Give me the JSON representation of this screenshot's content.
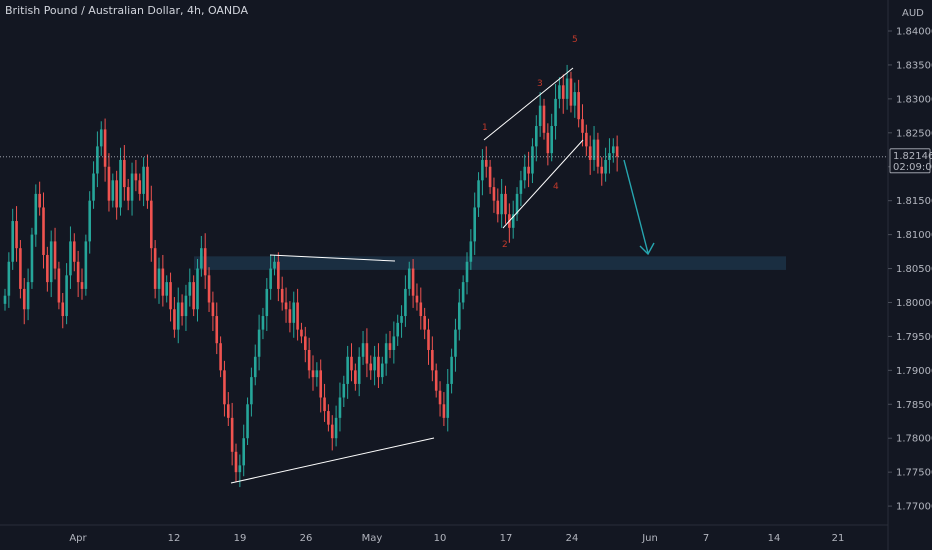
{
  "chart_title": "British Pound / Australian Dollar, 4h, OANDA",
  "chart_data": {
    "type": "candlestick",
    "title": "British Pound / Australian Dollar, 4h, OANDA",
    "currency": "AUD",
    "ylim": [
      1.7675,
      1.8425
    ],
    "y_ticks": [
      "1.84000",
      "1.83500",
      "1.83000",
      "1.82500",
      "1.82000",
      "1.81500",
      "1.81000",
      "1.80500",
      "1.80000",
      "1.79500",
      "1.79000",
      "1.78500",
      "1.78000",
      "1.77500",
      "1.77000"
    ],
    "x_ticks": [
      "Apr",
      "12",
      "19",
      "26",
      "May",
      "10",
      "17",
      "24",
      "Jun",
      "7",
      "14",
      "21"
    ],
    "last_price": "1.82146",
    "countdown": "02:09:04",
    "support_zone": [
      1.8048,
      1.8068
    ],
    "wave_labels": [
      "1",
      "2",
      "3",
      "4",
      "5"
    ],
    "close_series": [
      1.801,
      1.806,
      1.812,
      1.808,
      1.802,
      1.799,
      1.803,
      1.81,
      1.816,
      1.814,
      1.807,
      1.803,
      1.809,
      1.805,
      1.8,
      1.798,
      1.804,
      1.809,
      1.806,
      1.803,
      1.802,
      1.809,
      1.815,
      1.819,
      1.823,
      1.8255,
      1.82,
      1.815,
      1.818,
      1.814,
      1.821,
      1.817,
      1.815,
      1.819,
      1.818,
      1.816,
      1.82,
      1.815,
      1.808,
      1.802,
      1.805,
      1.801,
      1.803,
      1.799,
      1.796,
      1.8,
      1.798,
      1.801,
      1.803,
      1.799,
      1.805,
      1.808,
      1.804,
      1.8,
      1.798,
      1.794,
      1.79,
      1.785,
      1.783,
      1.778,
      1.775,
      1.776,
      1.78,
      1.785,
      1.789,
      1.792,
      1.796,
      1.798,
      1.802,
      1.805,
      1.806,
      1.802,
      1.8,
      1.799,
      1.797,
      1.8,
      1.796,
      1.795,
      1.793,
      1.79,
      1.789,
      1.79,
      1.786,
      1.784,
      1.782,
      1.78,
      1.783,
      1.786,
      1.788,
      1.792,
      1.79,
      1.788,
      1.792,
      1.794,
      1.791,
      1.79,
      1.792,
      1.789,
      1.791,
      1.794,
      1.793,
      1.795,
      1.797,
      1.798,
      1.802,
      1.805,
      1.801,
      1.8,
      1.798,
      1.796,
      1.793,
      1.79,
      1.787,
      1.785,
      1.783,
      1.788,
      1.792,
      1.796,
      1.8,
      1.803,
      1.806,
      1.809,
      1.814,
      1.818,
      1.821,
      1.82,
      1.817,
      1.815,
      1.813,
      1.816,
      1.813,
      1.811,
      1.813,
      1.816,
      1.818,
      1.82,
      1.819,
      1.823,
      1.826,
      1.829,
      1.825,
      1.822,
      1.826,
      1.83,
      1.832,
      1.83,
      1.833,
      1.829,
      1.831,
      1.827,
      1.825,
      1.823,
      1.821,
      1.824,
      1.82,
      1.819,
      1.821,
      1.822,
      1.823,
      1.8215
    ]
  },
  "colors": {
    "background": "#131722",
    "up_candle": "#26a69a",
    "down_candle": "#ef5350",
    "zone_fill": "#1c3347",
    "last_price_line": "#b2b5be",
    "arrow": "#26a6b0",
    "annotation_lines": "#ffffff",
    "wave_label": "#c0392b",
    "axis_text": "#b2b5be"
  }
}
